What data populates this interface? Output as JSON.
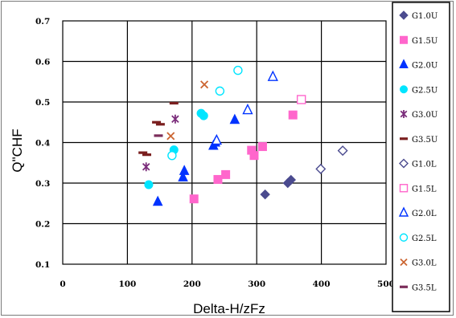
{
  "chart_data": {
    "type": "scatter",
    "title": "",
    "xlabel": "Delta-H/zFz",
    "ylabel": "Q\"CHF",
    "xlim": [
      0,
      500
    ],
    "ylim": [
      0.1,
      0.7
    ],
    "x_ticks": [
      "0",
      "100",
      "200",
      "300",
      "400",
      "500"
    ],
    "y_ticks": [
      "0.1",
      "0.2",
      "0.3",
      "0.4",
      "0.5",
      "0.6",
      "0.7"
    ],
    "grid": true,
    "legend_position": "right",
    "series": [
      {
        "name": "G1.0U",
        "marker": "diamond",
        "filled": true,
        "color": "#4b4b8f",
        "points": [
          [
            313,
            0.272
          ],
          [
            348,
            0.3
          ],
          [
            353,
            0.308
          ]
        ]
      },
      {
        "name": "G1.5U",
        "marker": "square",
        "filled": true,
        "color": "#ff66cc",
        "points": [
          [
            203,
            0.261
          ],
          [
            240,
            0.309
          ],
          [
            252,
            0.321
          ],
          [
            292,
            0.381
          ],
          [
            296,
            0.368
          ],
          [
            309,
            0.39
          ],
          [
            356,
            0.468
          ]
        ]
      },
      {
        "name": "G2.0U",
        "marker": "triangle",
        "filled": true,
        "color": "#0033ff",
        "points": [
          [
            147,
            0.254
          ],
          [
            186,
            0.314
          ],
          [
            188,
            0.33
          ],
          [
            233,
            0.392
          ],
          [
            236,
            0.4
          ],
          [
            266,
            0.456
          ]
        ]
      },
      {
        "name": "G2.5U",
        "marker": "circle",
        "filled": true,
        "color": "#00e5ff",
        "points": [
          [
            133,
            0.296
          ],
          [
            172,
            0.382
          ],
          [
            214,
            0.472
          ],
          [
            218,
            0.466
          ]
        ]
      },
      {
        "name": "G3.0U",
        "marker": "star",
        "filled": true,
        "color": "#7b2d7b",
        "points": [
          [
            129,
            0.34
          ],
          [
            174,
            0.458
          ]
        ]
      },
      {
        "name": "G3.5U",
        "marker": "dash",
        "filled": true,
        "color": "#7a1f1f",
        "points": [
          [
            124,
            0.375
          ],
          [
            130,
            0.37
          ],
          [
            145,
            0.45
          ],
          [
            151,
            0.445
          ],
          [
            172,
            0.497
          ]
        ]
      },
      {
        "name": "G1.0L",
        "marker": "diamond",
        "filled": false,
        "color": "#4b4b8f",
        "points": [
          [
            399,
            0.335
          ],
          [
            433,
            0.38
          ]
        ]
      },
      {
        "name": "G1.5L",
        "marker": "square",
        "filled": false,
        "color": "#ff66cc",
        "points": [
          [
            369,
            0.506
          ]
        ]
      },
      {
        "name": "G2.0L",
        "marker": "triangle",
        "filled": false,
        "color": "#0033ff",
        "points": [
          [
            238,
            0.405
          ],
          [
            286,
            0.48
          ],
          [
            325,
            0.562
          ]
        ]
      },
      {
        "name": "G2.5L",
        "marker": "circle",
        "filled": false,
        "color": "#00e5ff",
        "points": [
          [
            169,
            0.368
          ],
          [
            243,
            0.527
          ],
          [
            271,
            0.578
          ]
        ]
      },
      {
        "name": "G3.0L",
        "marker": "x",
        "filled": false,
        "color": "#cc6633",
        "points": [
          [
            167,
            0.416
          ],
          [
            219,
            0.543
          ]
        ]
      },
      {
        "name": "G3.5L",
        "marker": "dash",
        "filled": false,
        "color": "#7b2d5a",
        "points": [
          [
            148,
            0.417
          ]
        ]
      }
    ]
  }
}
